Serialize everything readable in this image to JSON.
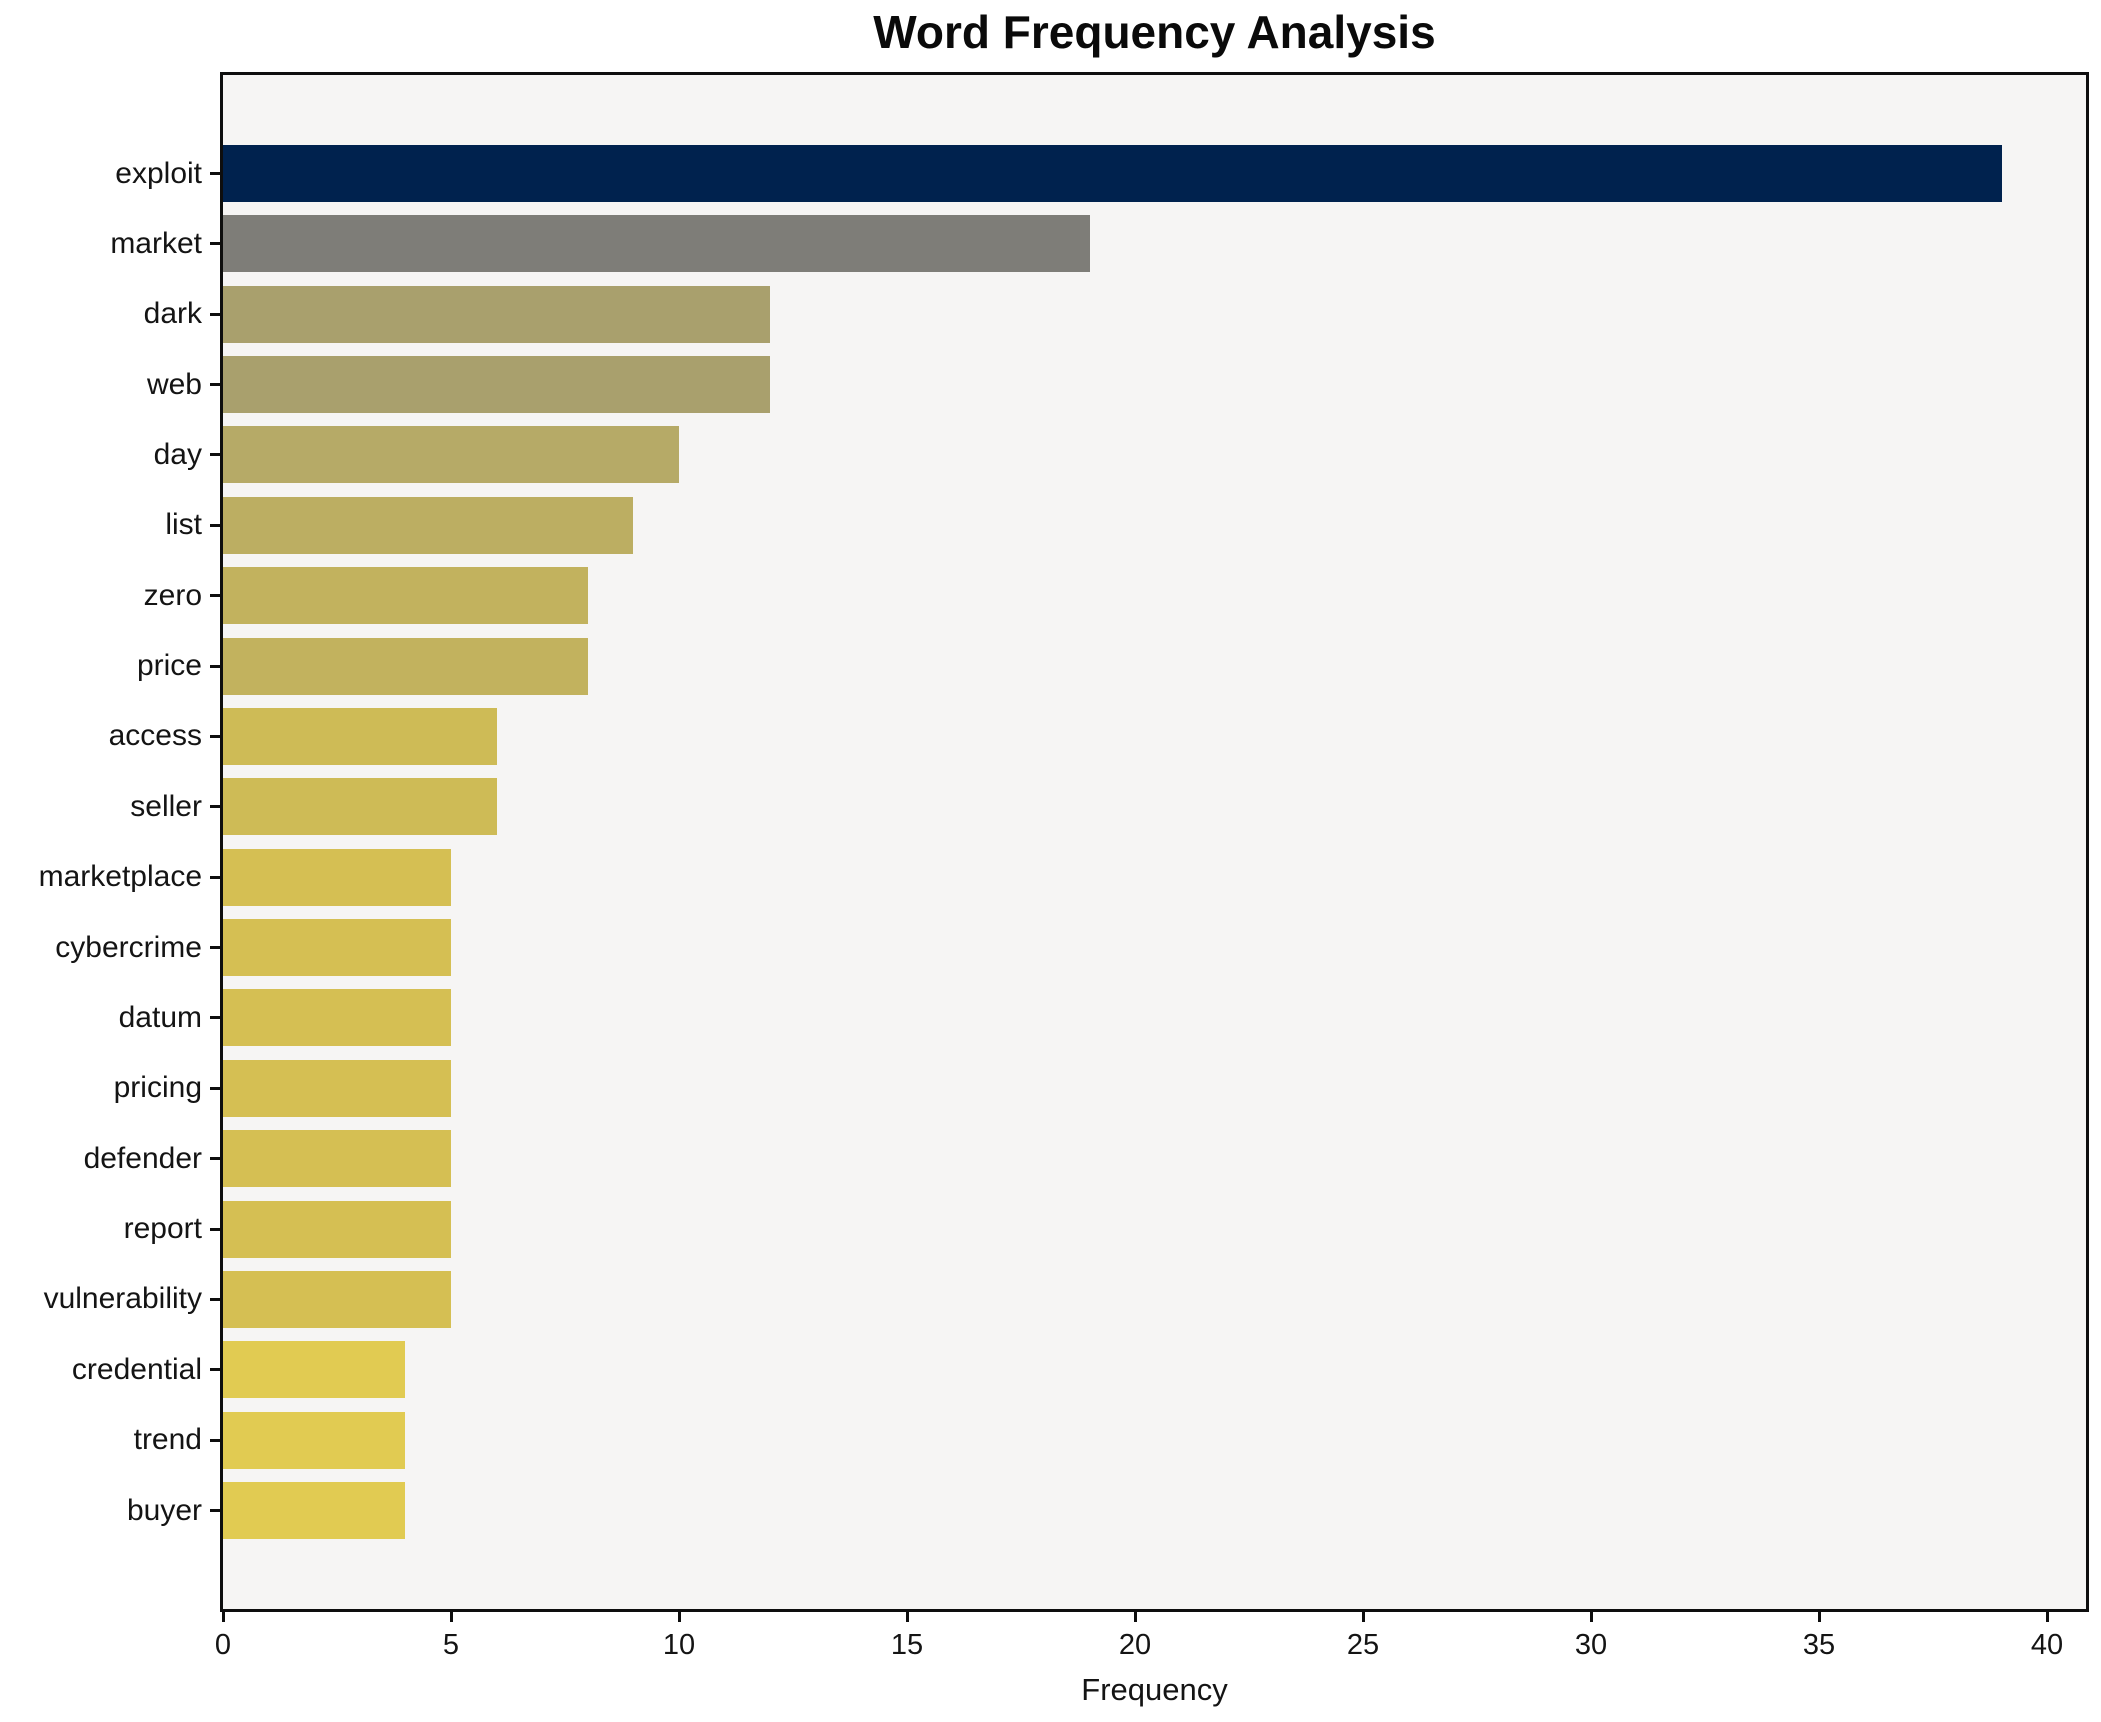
{
  "title": "Word Frequency Analysis",
  "chart_data": {
    "type": "bar",
    "orientation": "horizontal",
    "title": "Word Frequency Analysis",
    "xlabel": "Frequency",
    "ylabel": "",
    "categories": [
      "exploit",
      "market",
      "dark",
      "web",
      "day",
      "list",
      "zero",
      "price",
      "access",
      "seller",
      "marketplace",
      "cybercrime",
      "datum",
      "pricing",
      "defender",
      "report",
      "vulnerability",
      "credential",
      "trend",
      "buyer"
    ],
    "values": [
      39,
      19,
      12,
      12,
      10,
      9,
      8,
      8,
      6,
      6,
      5,
      5,
      5,
      5,
      5,
      5,
      5,
      4,
      4,
      4
    ],
    "bar_colors": [
      "#00224e",
      "#7e7d78",
      "#a9a06d",
      "#a9a06d",
      "#b6aa67",
      "#bcae62",
      "#c2b25e",
      "#c2b25e",
      "#cebb56",
      "#cebb56",
      "#d5bf53",
      "#d5bf53",
      "#d5bf53",
      "#d5bf53",
      "#d5bf53",
      "#d5bf53",
      "#d5bf53",
      "#e1cb52",
      "#e1cb52",
      "#e1cb52"
    ],
    "xticks": [
      0,
      5,
      10,
      15,
      20,
      25,
      30,
      35,
      40
    ],
    "xlim": [
      0,
      40.85
    ],
    "grid": false,
    "legend": null,
    "plot_background": "#f6f5f4",
    "figure_background": "#ffffff",
    "spine_color": "#0e0e0e"
  }
}
